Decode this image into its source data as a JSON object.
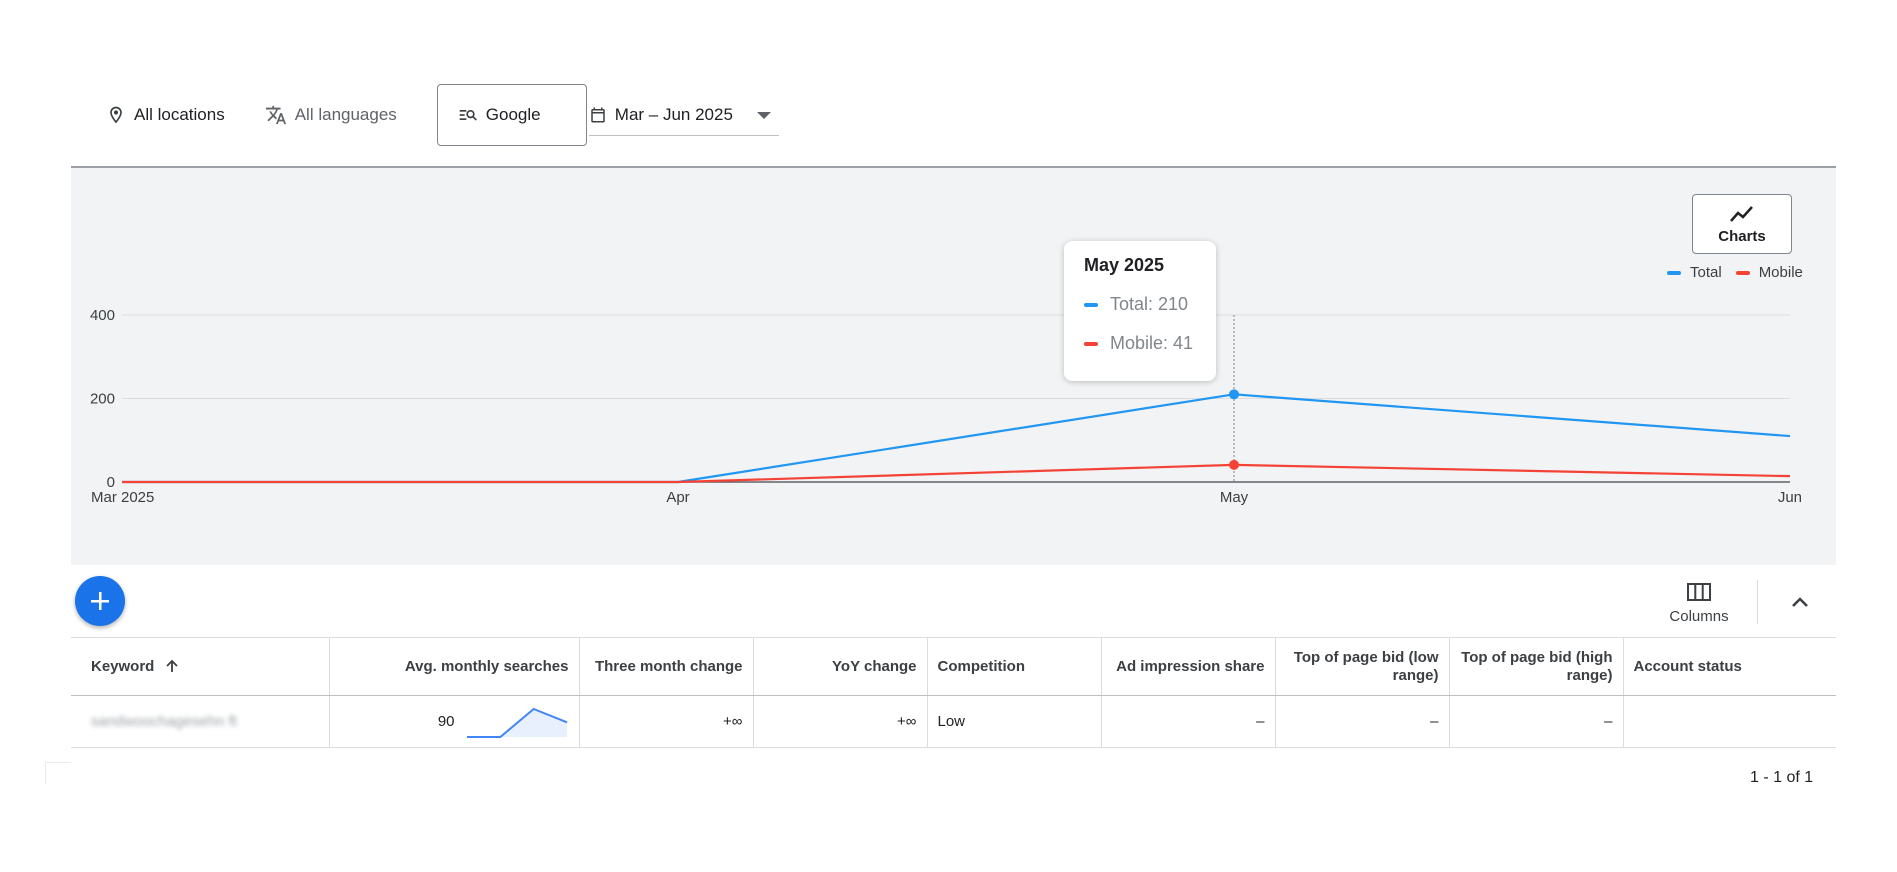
{
  "filters": {
    "location": "All locations",
    "language": "All languages",
    "network": "Google",
    "date_range": "Mar – Jun 2025"
  },
  "chart_controls": {
    "charts_label": "Charts"
  },
  "tooltip": {
    "title": "May 2025",
    "total": "Total: 210",
    "mobile": "Mobile: 41"
  },
  "colors": {
    "total": "#2196f3",
    "mobile": "#f44336",
    "fab": "#1a73e8"
  },
  "chart_data": {
    "type": "line",
    "categories": [
      "Mar 2025",
      "Apr",
      "May",
      "Jun"
    ],
    "series": [
      {
        "name": "Total",
        "values": [
          0,
          0,
          210,
          110
        ]
      },
      {
        "name": "Mobile",
        "values": [
          0,
          0,
          41,
          14
        ]
      }
    ],
    "yticks": [
      "0",
      "200",
      "400"
    ],
    "ylim": [
      0,
      400
    ],
    "legend_position": "top-right",
    "grid": true,
    "highlight_category": "May"
  },
  "toolbar": {
    "columns_label": "Columns"
  },
  "table": {
    "headers": {
      "keyword": "Keyword",
      "avg": "Avg. monthly searches",
      "three_month": "Three month change",
      "yoy": "YoY change",
      "competition": "Competition",
      "impression": "Ad impression share",
      "bid_low": "Top of page bid (low range)",
      "bid_high": "Top of page bid (high range)",
      "account_status": "Account status"
    },
    "rows": [
      {
        "keyword": "sandwoochagesehn ft",
        "avg": "90",
        "trend": [
          0,
          0,
          210,
          110
        ],
        "three_month": "+∞",
        "yoy": "+∞",
        "competition": "Low",
        "impression": "–",
        "bid_low": "–",
        "bid_high": "–",
        "account_status": ""
      }
    ]
  },
  "pagination": {
    "label": "1 - 1 of 1"
  }
}
